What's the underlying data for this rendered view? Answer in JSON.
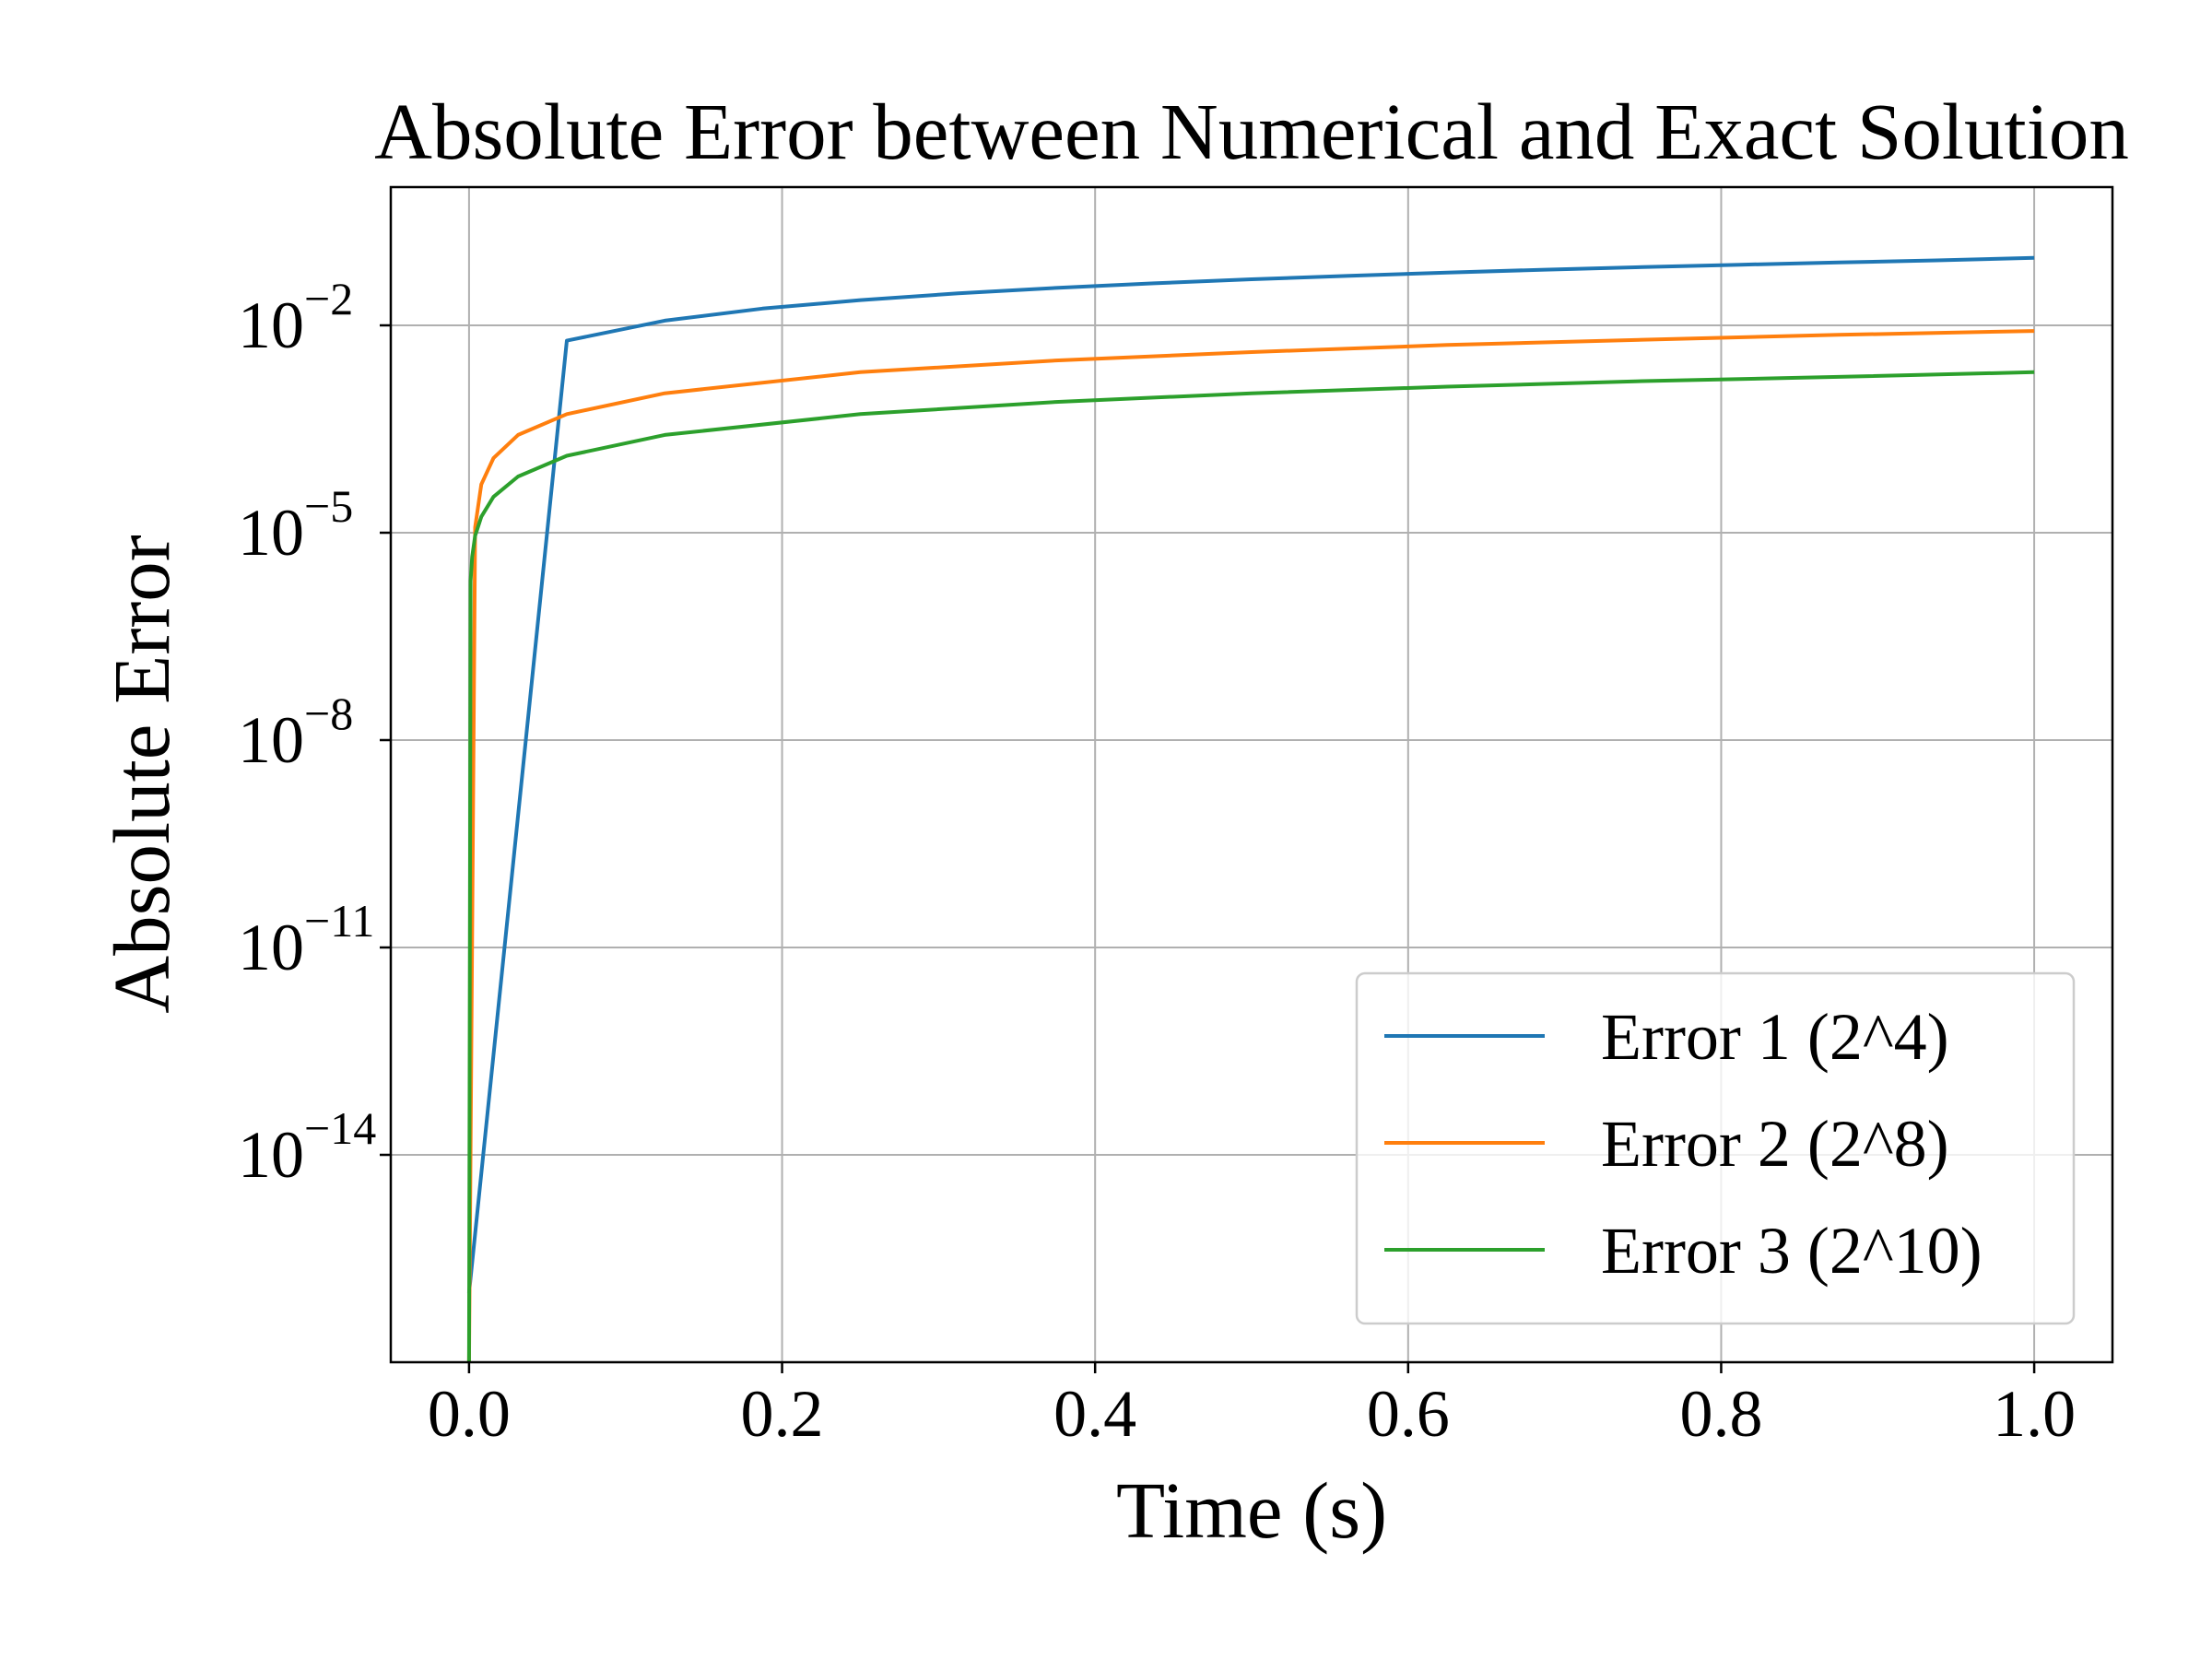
{
  "chart_data": {
    "type": "line",
    "title": "Absolute Error between Numerical and Exact Solution",
    "xlabel": "Time (s)",
    "ylabel": "Absolute Error",
    "xlim": [
      -0.05,
      1.05
    ],
    "ylim": [
      1e-17,
      1.0
    ],
    "yscale": "log",
    "grid": true,
    "legend_position": "lower right",
    "x_ticks": [
      {
        "value": 0.0,
        "label": "0.0"
      },
      {
        "value": 0.2,
        "label": "0.2"
      },
      {
        "value": 0.4,
        "label": "0.4"
      },
      {
        "value": 0.6,
        "label": "0.6"
      },
      {
        "value": 0.8,
        "label": "0.8"
      },
      {
        "value": 1.0,
        "label": "1.0"
      }
    ],
    "y_ticks": [
      {
        "value": 0.01,
        "base": "10",
        "exp": "−2"
      },
      {
        "value": 1e-05,
        "base": "10",
        "exp": "−5"
      },
      {
        "value": 1e-08,
        "base": "10",
        "exp": "−8"
      },
      {
        "value": 1e-11,
        "base": "10",
        "exp": "−11"
      },
      {
        "value": 1e-14,
        "base": "10",
        "exp": "−14"
      }
    ],
    "series": [
      {
        "name": "Error 1 (2^4)",
        "color": "#1f77b4",
        "x": [
          0.0,
          0.0625,
          0.125,
          0.1875,
          0.25,
          0.3125,
          0.375,
          0.4375,
          0.5,
          0.5625,
          0.625,
          0.6875,
          0.75,
          0.8125,
          0.875,
          0.9375,
          1.0
        ],
        "y": [
          1e-16,
          0.006,
          0.0117,
          0.0175,
          0.0232,
          0.029,
          0.0348,
          0.0406,
          0.0464,
          0.0522,
          0.058,
          0.0638,
          0.0696,
          0.0754,
          0.0812,
          0.087,
          0.095
        ]
      },
      {
        "name": "Error 2 (2^8)",
        "color": "#ff7f0e",
        "x": [
          0.0,
          0.0039,
          0.0078,
          0.0156,
          0.0313,
          0.0625,
          0.125,
          0.25,
          0.375,
          0.5,
          0.625,
          0.75,
          0.875,
          1.0
        ],
        "y": [
          1e-17,
          1.2e-05,
          5e-05,
          0.00012,
          0.00026,
          0.00052,
          0.00104,
          0.0021,
          0.0031,
          0.0041,
          0.0052,
          0.0062,
          0.0073,
          0.0083
        ]
      },
      {
        "name": "Error 3 (2^10)",
        "color": "#2ca02c",
        "x": [
          0.0,
          0.001,
          0.002,
          0.0039,
          0.0078,
          0.0156,
          0.0313,
          0.0625,
          0.125,
          0.25,
          0.375,
          0.5,
          0.625,
          0.75,
          0.875,
          1.0
        ],
        "y": [
          1e-17,
          2e-06,
          4.5e-06,
          9e-06,
          1.7e-05,
          3.3e-05,
          6.5e-05,
          0.00013,
          0.00026,
          0.00052,
          0.00078,
          0.00104,
          0.0013,
          0.00156,
          0.0018,
          0.0021
        ]
      }
    ]
  }
}
